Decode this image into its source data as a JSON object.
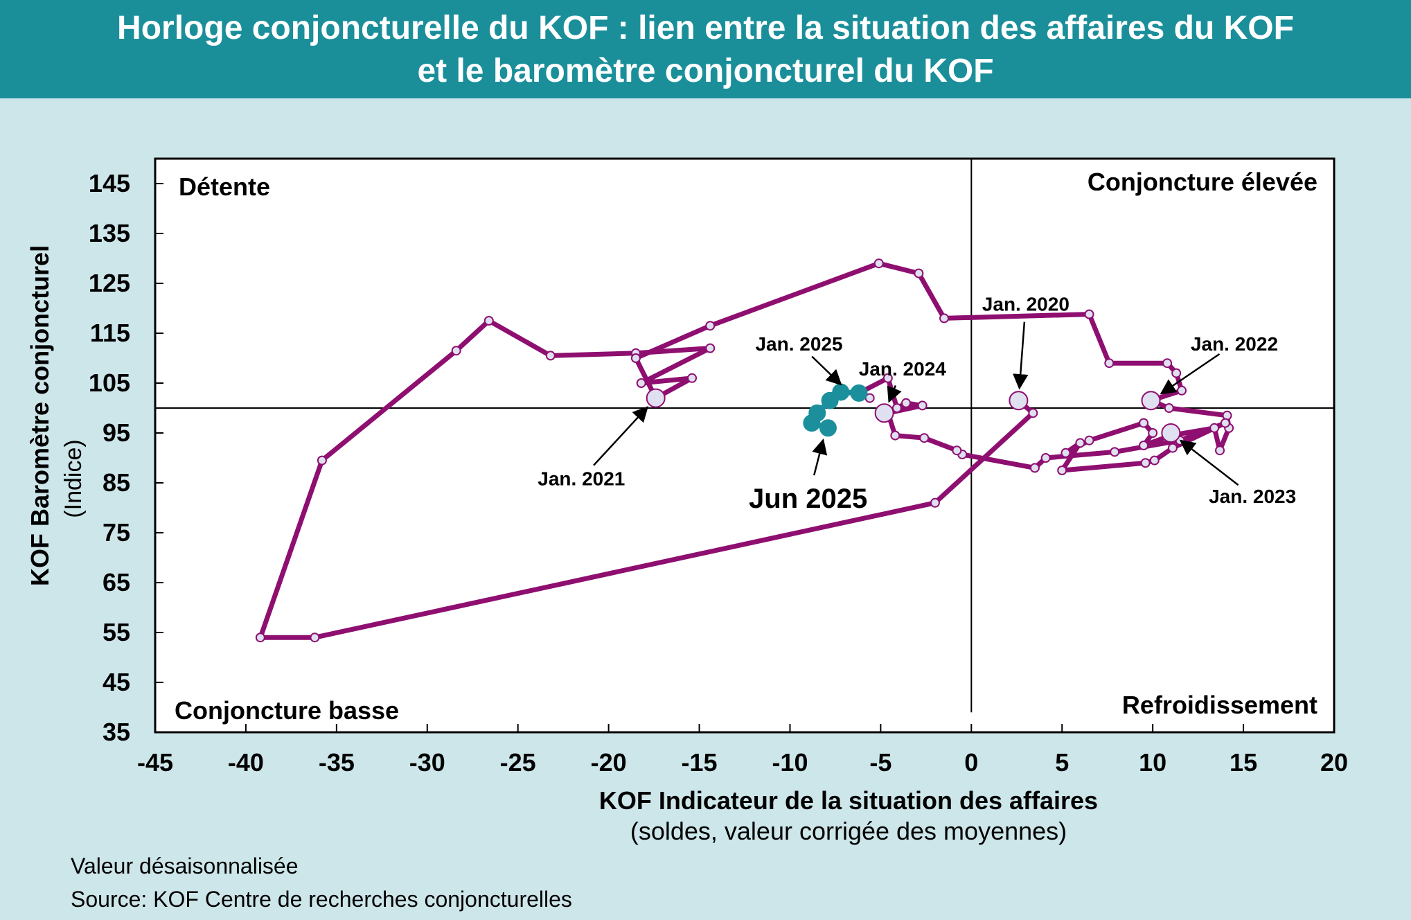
{
  "title": {
    "line1": "Horloge conjoncturelle du KOF : lien entre la situation des affaires du KOF",
    "line2": "et le baromètre conjoncturel du KOF"
  },
  "footnotes": {
    "note": "Valeur désaisonnalisée",
    "source": "Source: KOF Centre de recherches conjoncturelles"
  },
  "colors": {
    "background": "#cde6ea",
    "title_bar": "#1a8f9a",
    "history_line": "#8e0f70",
    "recent_line": "#1b8f9b",
    "marker_fill": "#dfe0f0"
  },
  "chart_data": {
    "type": "line",
    "xlabel": "KOF Indicateur de la situation des affaires",
    "xlabel_sub": "(soldes, valeur corrigée des moyennes)",
    "ylabel": "KOF Baromètre conjoncturel",
    "ylabel_sub": "(Indice)",
    "xlim": [
      -45,
      20
    ],
    "ylim": [
      35,
      150
    ],
    "x_ticks": [
      -45,
      -40,
      -35,
      -30,
      -25,
      -20,
      -15,
      -10,
      -5,
      0,
      5,
      10,
      15,
      20
    ],
    "y_ticks": [
      35,
      45,
      55,
      65,
      75,
      85,
      95,
      105,
      115,
      125,
      135,
      145
    ],
    "reference_lines": {
      "x": 0,
      "y": 100
    },
    "quadrants": {
      "top_left": "Détente",
      "top_right": "Conjoncture élevée",
      "bottom_left": "Conjoncture basse",
      "bottom_right": "Refroidissement"
    },
    "series": [
      {
        "points": [
          [
            2.6,
            101.5
          ],
          [
            3.4,
            99
          ],
          [
            -2,
            81
          ],
          [
            -36.2,
            54
          ],
          [
            -39.2,
            54
          ],
          [
            -35.8,
            89.5
          ],
          [
            -28.4,
            111.5
          ],
          [
            -26.6,
            117.5
          ],
          [
            -23.2,
            110.5
          ],
          [
            -18.5,
            111
          ],
          [
            -14.4,
            112
          ],
          [
            -18.2,
            105
          ],
          [
            -15.4,
            106
          ],
          [
            -17.4,
            102
          ],
          [
            -18.5,
            110
          ],
          [
            -14.4,
            116.5
          ],
          [
            -5.1,
            129
          ],
          [
            -2.9,
            127
          ],
          [
            -1.5,
            118
          ],
          [
            6.5,
            118.8
          ],
          [
            7.6,
            109
          ],
          [
            10.8,
            109
          ],
          [
            11.3,
            107
          ],
          [
            11.6,
            103.5
          ],
          [
            9.9,
            101.5
          ],
          [
            10.9,
            100
          ],
          [
            14.1,
            98.5
          ],
          [
            14.2,
            96
          ],
          [
            13.7,
            91.5
          ],
          [
            13.4,
            96
          ],
          [
            11,
            94.5
          ],
          [
            9.5,
            92.5
          ],
          [
            10,
            95
          ],
          [
            9.5,
            97
          ],
          [
            6.5,
            93.5
          ],
          [
            5.2,
            91
          ],
          [
            6,
            93
          ],
          [
            5,
            87.5
          ],
          [
            9.6,
            89
          ],
          [
            10.1,
            89.5
          ],
          [
            11.1,
            92
          ],
          [
            14,
            97
          ],
          [
            11.5,
            93.5
          ],
          [
            7.9,
            91.2
          ],
          [
            4.1,
            90
          ],
          [
            3.5,
            88
          ],
          [
            -0.5,
            90.7
          ],
          [
            -0.8,
            91.5
          ],
          [
            -2.6,
            94
          ],
          [
            -4.2,
            94.5
          ],
          [
            -4.6,
            99
          ],
          [
            -2.7,
            100.5
          ],
          [
            -3.6,
            101
          ],
          [
            -4.1,
            100
          ],
          [
            -4.6,
            106
          ],
          [
            -6.2,
            103
          ],
          [
            -5.6,
            102
          ],
          [
            -6.2,
            103.5
          ]
        ],
        "anchor_points": [
          [
            2.6,
            101.5
          ],
          [
            -17.4,
            102
          ],
          [
            9.9,
            101.5
          ],
          [
            11,
            95
          ],
          [
            -4.8,
            99
          ]
        ]
      },
      {
        "points": [
          [
            -6.2,
            103
          ],
          [
            -7.2,
            103.2
          ],
          [
            -7.8,
            101.5
          ],
          [
            -8.5,
            99
          ],
          [
            -8.8,
            97
          ],
          [
            -7.9,
            96
          ]
        ],
        "anchor_points": [
          [
            -7.2,
            103.2
          ]
        ]
      }
    ],
    "annotations": [
      {
        "text": "Jan. 2020",
        "x": 2.6,
        "y": 101.5,
        "label_x": 3,
        "label_y": 119.5
      },
      {
        "text": "Jan. 2021",
        "x": -17.4,
        "y": 102,
        "label_x": -21.5,
        "label_y": 84.5
      },
      {
        "text": "Jan. 2022",
        "x": 9.9,
        "y": 101.5,
        "label_x": 14.5,
        "label_y": 111.5
      },
      {
        "text": "Jan. 2023",
        "x": 11,
        "y": 95,
        "label_x": 15.5,
        "label_y": 81
      },
      {
        "text": "Jan. 2024",
        "x": -4.8,
        "y": 99,
        "label_x": -3.8,
        "label_y": 106.5
      },
      {
        "text": "Jan. 2025",
        "x": -6.7,
        "y": 103,
        "label_x": -9.5,
        "label_y": 111.5
      },
      {
        "text": "Jun 2025",
        "x": -8,
        "y": 96,
        "label_x": -9,
        "label_y": 80,
        "large": true
      }
    ]
  }
}
